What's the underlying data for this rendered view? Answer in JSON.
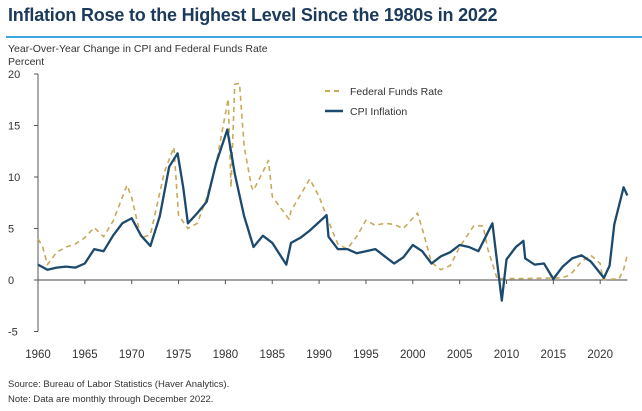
{
  "chart_data": {
    "type": "line",
    "title": "Inflation Rose to the Highest Level Since the 1980s in 2022",
    "subtitle": "Year-Over-Year Change in CPI and Federal Funds Rate",
    "ylabel": "Percent",
    "xlabel": "",
    "ylim": [
      -5,
      20
    ],
    "xlim": [
      1960,
      2023
    ],
    "yticks": [
      -5,
      0,
      5,
      10,
      15,
      20
    ],
    "xticks": [
      1960,
      1965,
      1970,
      1975,
      1980,
      1985,
      1990,
      1995,
      2000,
      2005,
      2010,
      2015,
      2020
    ],
    "grid": false,
    "legend_position": "top-center",
    "series": [
      {
        "name": "Federal Funds Rate",
        "color": "#c8a95a",
        "style": "dashed",
        "x": [
          1960,
          1960.5,
          1961,
          1962,
          1963,
          1964,
          1965,
          1966,
          1967,
          1968,
          1969.5,
          1970,
          1971,
          1972,
          1973.5,
          1974.5,
          1975,
          1976,
          1977,
          1978,
          1979,
          1980.3,
          1980.6,
          1981,
          1981.5,
          1982,
          1982.8,
          1983,
          1984.6,
          1985,
          1986.8,
          1987,
          1989,
          1990,
          1991,
          1992,
          1993,
          1994,
          1995,
          1996,
          1997,
          1998,
          1999,
          2000.5,
          2001,
          2002,
          2003,
          2004,
          2005,
          2006.5,
          2007.5,
          2008,
          2009,
          2012,
          2015.9,
          2016.5,
          2017,
          2018,
          2019,
          2020,
          2020.3,
          2022,
          2022.5,
          2022.9
        ],
        "y": [
          4.0,
          3.2,
          1.5,
          2.7,
          3.2,
          3.5,
          4.1,
          5.1,
          4.2,
          5.7,
          9.2,
          8.0,
          4.1,
          4.4,
          10.5,
          12.9,
          6.3,
          5.0,
          5.5,
          8.0,
          11.2,
          17.6,
          9.0,
          19.0,
          19.1,
          13.0,
          9.0,
          8.7,
          11.6,
          8.1,
          5.9,
          6.7,
          9.8,
          8.1,
          5.7,
          3.5,
          3.0,
          4.2,
          5.8,
          5.3,
          5.5,
          5.4,
          5.0,
          6.5,
          5.0,
          1.7,
          1.0,
          1.4,
          3.2,
          5.25,
          5.25,
          3.0,
          0.15,
          0.15,
          0.2,
          0.4,
          0.7,
          1.8,
          2.4,
          1.6,
          0.05,
          0.1,
          1.0,
          2.5
        ]
      },
      {
        "name": "CPI Inflation",
        "color": "#1b4a6e",
        "style": "solid",
        "x": [
          1960,
          1961,
          1962,
          1963,
          1964,
          1965,
          1966,
          1967,
          1968,
          1969,
          1970,
          1971,
          1972,
          1973,
          1974,
          1974.9,
          1975.5,
          1976,
          1977,
          1978,
          1979,
          1980.2,
          1981,
          1982,
          1983,
          1984,
          1985,
          1986.5,
          1987,
          1988,
          1989,
          1990.8,
          1991,
          1992,
          1993,
          1994,
          1995,
          1996,
          1997,
          1998,
          1999,
          2000,
          2001,
          2002,
          2003,
          2004,
          2005,
          2006,
          2007,
          2008.5,
          2009.5,
          2010,
          2011,
          2011.8,
          2012,
          2013,
          2014,
          2015,
          2016,
          2017,
          2018,
          2019,
          2020.4,
          2021,
          2021.5,
          2022.5,
          2022.9
        ],
        "y": [
          1.5,
          1.0,
          1.2,
          1.3,
          1.2,
          1.6,
          3.0,
          2.8,
          4.3,
          5.5,
          6.0,
          4.3,
          3.3,
          6.2,
          11.0,
          12.3,
          9.0,
          5.5,
          6.5,
          7.6,
          11.3,
          14.6,
          10.3,
          6.2,
          3.2,
          4.3,
          3.6,
          1.5,
          3.6,
          4.1,
          4.8,
          6.3,
          4.2,
          3.0,
          3.0,
          2.6,
          2.8,
          3.0,
          2.3,
          1.6,
          2.2,
          3.4,
          2.8,
          1.6,
          2.3,
          2.7,
          3.4,
          3.2,
          2.8,
          5.5,
          -2.0,
          2.0,
          3.2,
          3.8,
          2.1,
          1.5,
          1.6,
          0.1,
          1.3,
          2.1,
          2.4,
          1.8,
          0.2,
          1.4,
          5.4,
          9.0,
          8.2
        ]
      }
    ]
  },
  "source": "Source: Bureau of Labor Statistics (Haver Analytics).",
  "note": "Note: Data are monthly through December 2022."
}
